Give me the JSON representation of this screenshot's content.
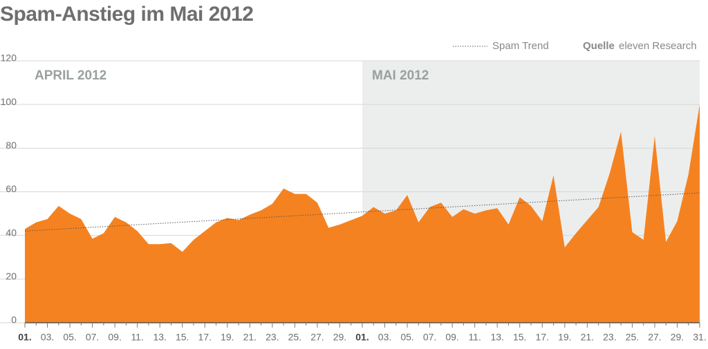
{
  "chart_data": {
    "type": "area",
    "title": "Spam-Anstieg im Mai 2012",
    "source_label": "Quelle",
    "source": "eleven Research",
    "regions": [
      {
        "label": "APRIL 2012"
      },
      {
        "label": "MAI 2012",
        "shaded": true
      }
    ],
    "categories": [
      "01.",
      null,
      "03.",
      null,
      "05.",
      null,
      "07.",
      null,
      "09.",
      null,
      "11.",
      null,
      "13.",
      null,
      "15.",
      null,
      "17.",
      null,
      "19.",
      null,
      "21.",
      null,
      "23.",
      null,
      "25.",
      null,
      "27.",
      null,
      "29.",
      null,
      "01.",
      null,
      "03.",
      null,
      "05.",
      null,
      "07.",
      null,
      "09.",
      null,
      "11.",
      null,
      "13.",
      null,
      "15.",
      null,
      "17.",
      null,
      "19.",
      null,
      "21.",
      null,
      "23.",
      null,
      "25.",
      null,
      "27.",
      null,
      "29.",
      null,
      "31."
    ],
    "series": [
      {
        "color": "#f58220",
        "values": [
          43,
          46,
          47.5,
          53.5,
          50,
          47.5,
          38.5,
          41,
          48.5,
          46,
          42,
          36,
          36,
          36.5,
          32.5,
          38,
          42,
          46,
          48,
          47,
          49.5,
          51.5,
          54.5,
          61.5,
          59,
          59,
          55,
          43.5,
          45,
          47,
          49,
          53,
          50,
          51.5,
          58.5,
          46,
          53,
          55,
          48.5,
          52,
          50,
          51.5,
          52.5,
          45,
          57.5,
          53.5,
          46.5,
          67.5,
          34.5,
          41,
          47,
          53,
          68.5,
          87.5,
          41.5,
          38,
          85.5,
          37,
          46.5,
          68,
          100
        ]
      }
    ],
    "trend": {
      "name": "Spam Trend",
      "color": "#555555",
      "values": [
        42,
        59.5
      ]
    },
    "ylim": [
      0,
      120
    ],
    "yticks": [
      0,
      20,
      40,
      60,
      80,
      100,
      120
    ],
    "grid": true
  }
}
